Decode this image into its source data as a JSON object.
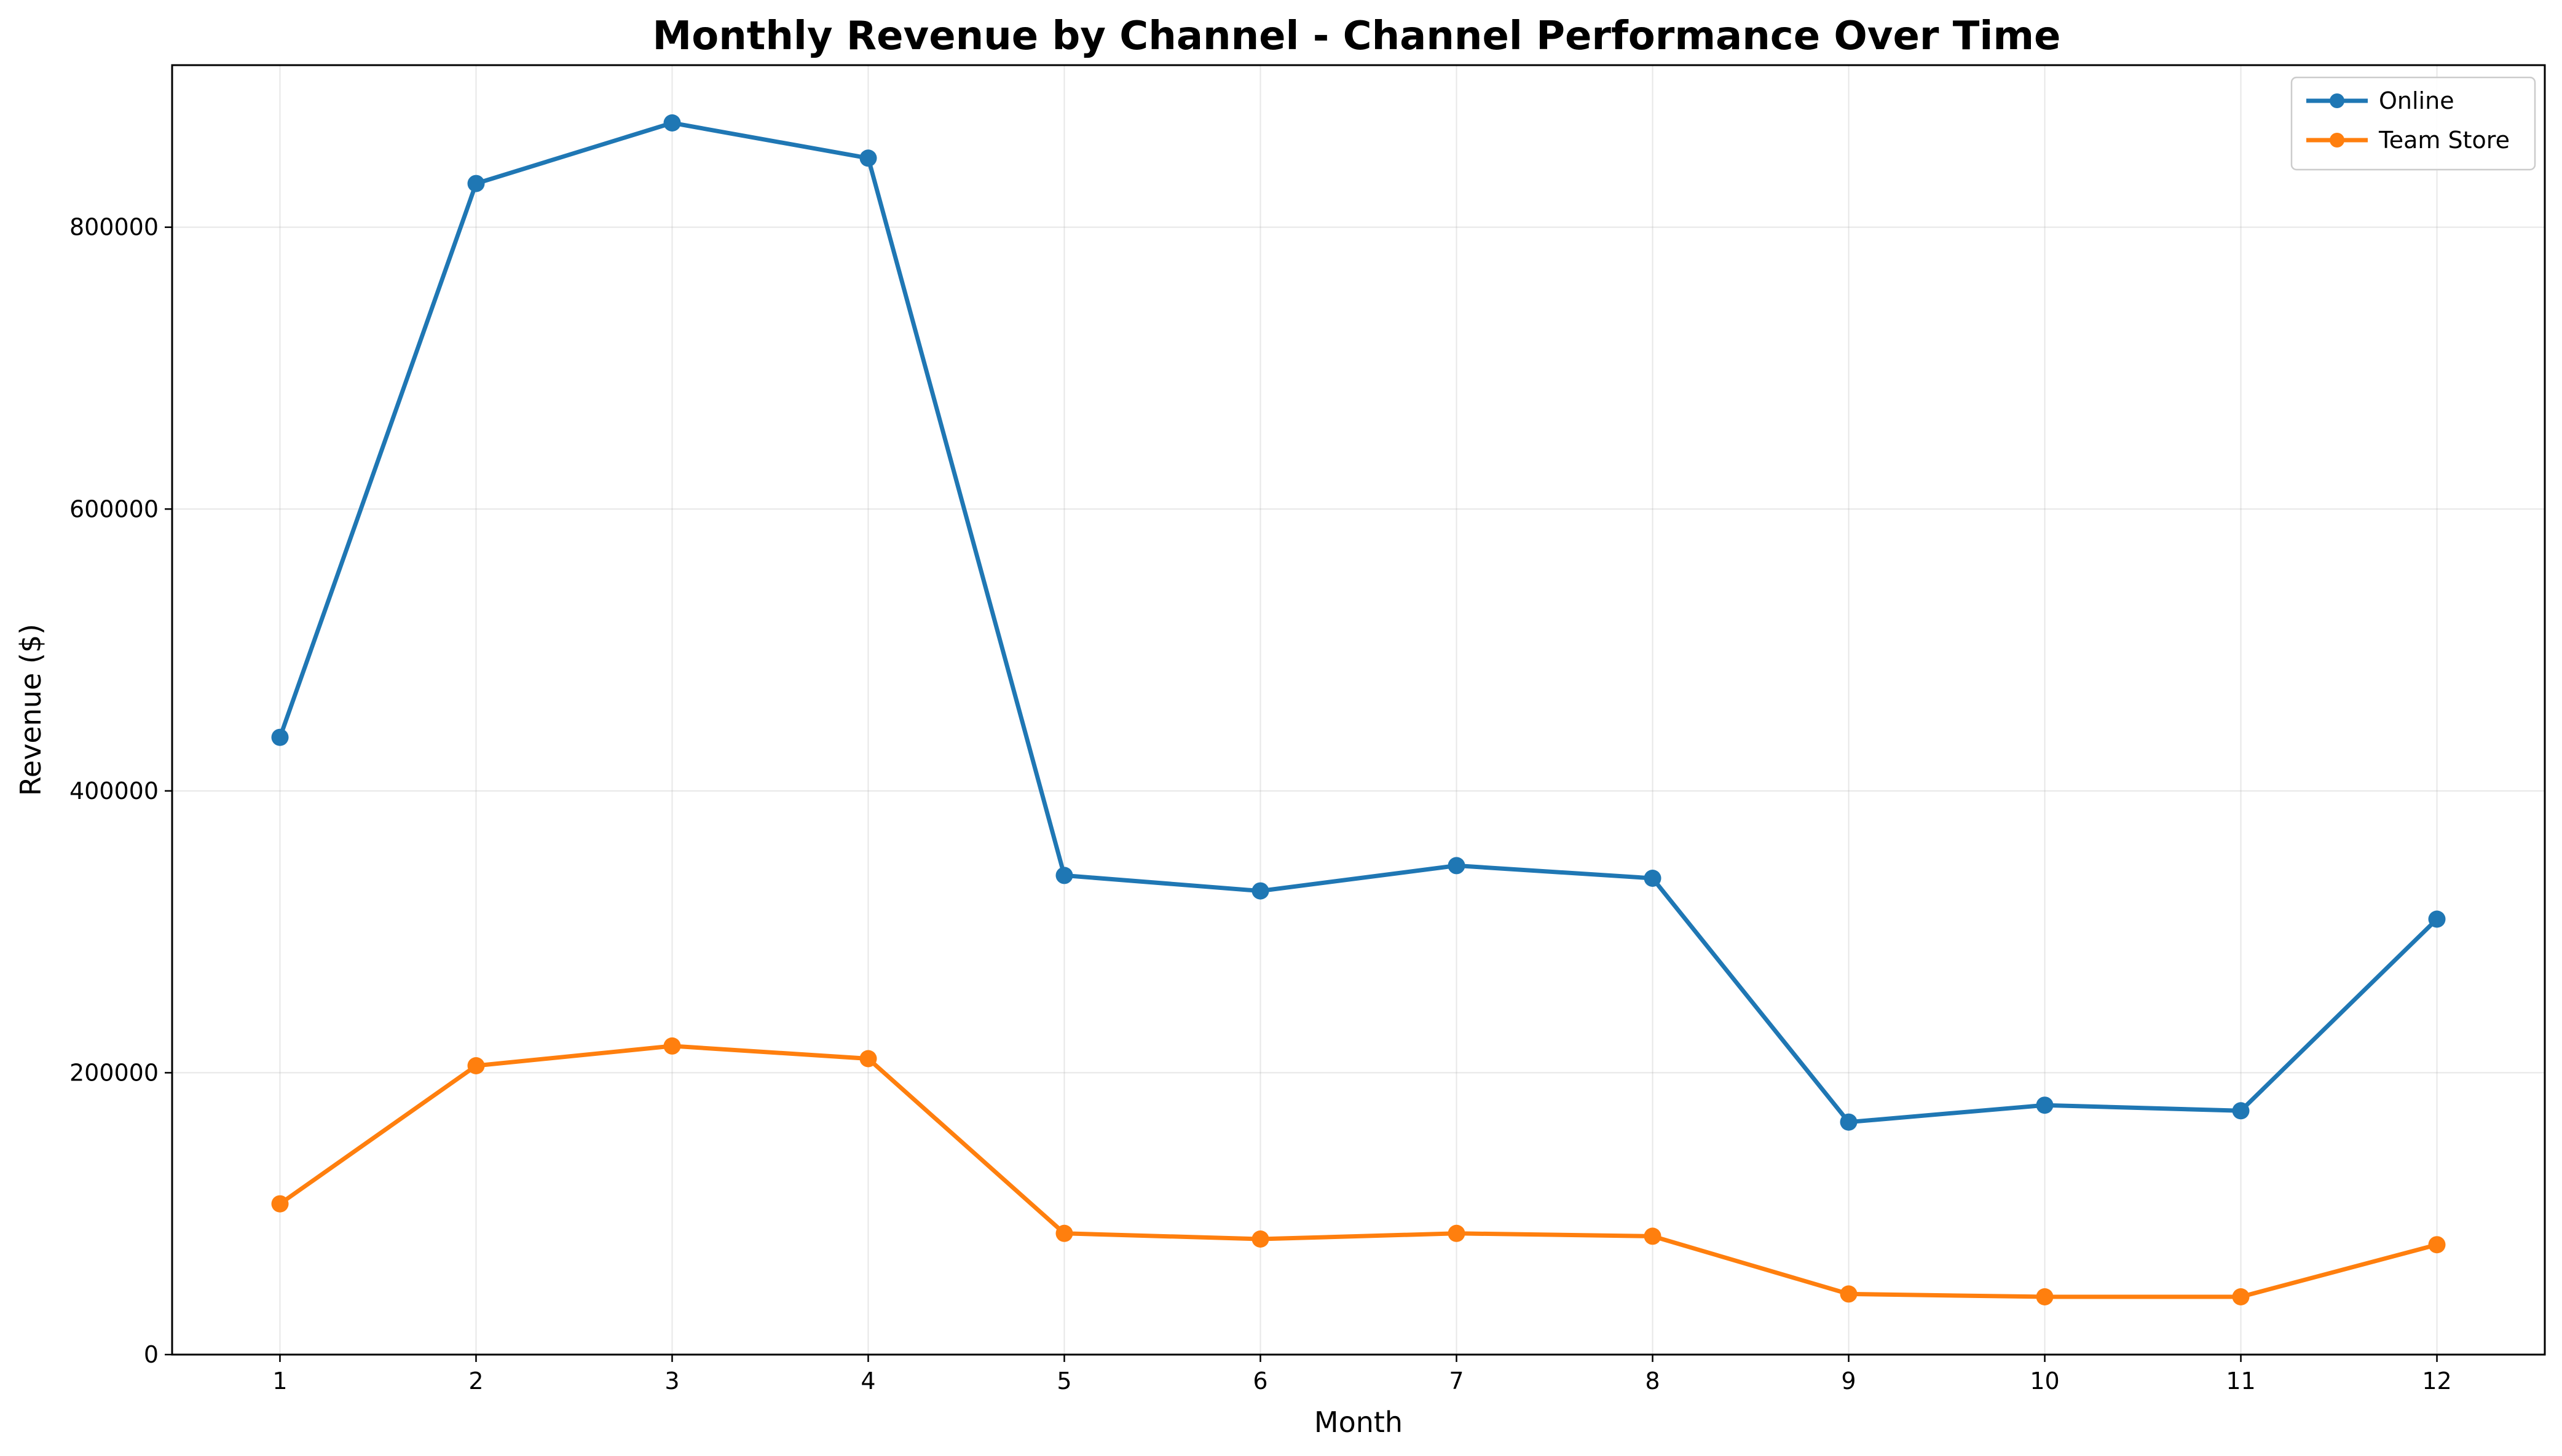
{
  "chart_data": {
    "type": "line",
    "title": "Monthly Revenue by Channel - Channel Performance Over Time",
    "xlabel": "Month",
    "ylabel": "Revenue ($)",
    "x": [
      1,
      2,
      3,
      4,
      5,
      6,
      7,
      8,
      9,
      10,
      11,
      12
    ],
    "x_tick_labels": [
      "1",
      "2",
      "3",
      "4",
      "5",
      "6",
      "7",
      "8",
      "9",
      "10",
      "11",
      "12"
    ],
    "xlim": [
      0.45,
      12.55
    ],
    "ylim": [
      0,
      915000
    ],
    "y_ticks": [
      0,
      200000,
      400000,
      600000,
      800000
    ],
    "y_tick_labels": [
      "0",
      "200000",
      "400000",
      "600000",
      "800000"
    ],
    "grid": true,
    "legend_position": "top-right",
    "series": [
      {
        "name": "Online",
        "color": "#1f77b4",
        "marker": "circle",
        "values": [
          438000,
          831000,
          874000,
          849000,
          340000,
          329000,
          347000,
          338000,
          165000,
          177000,
          173000,
          309000
        ]
      },
      {
        "name": "Team Store",
        "color": "#ff7f0e",
        "marker": "circle",
        "values": [
          107000,
          205000,
          219000,
          210000,
          86000,
          82000,
          86000,
          84000,
          43000,
          41000,
          41000,
          78000
        ]
      }
    ]
  }
}
